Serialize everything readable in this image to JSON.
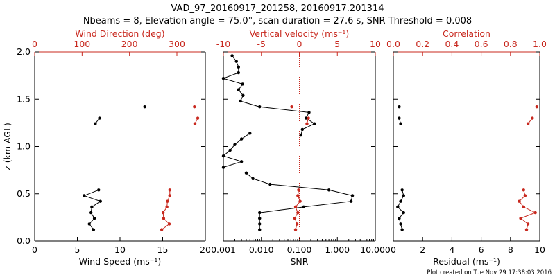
{
  "title": "VAD_97_20160917_201258, 20160917.201314",
  "subtitle": "Nbeams = 8, Elevation angle = 75.0°, scan duration = 27.6 s, SNR Threshold = 0.008",
  "footer": "Plot created on Tue Nov 29 17:38:03 2016",
  "colors": {
    "black": "#000000",
    "red": "#c8281e"
  },
  "chart_data": [
    {
      "type": "line",
      "ylabel": "z (km AGL)",
      "ylim": [
        0,
        2.0
      ],
      "y_ticks": [
        "0.0",
        "0.5",
        "1.0",
        "1.5",
        "2.0"
      ],
      "bottom_axis": {
        "label": "Wind Speed (ms⁻¹)",
        "lim": [
          0,
          20
        ],
        "ticks": [
          "0",
          "5",
          "10",
          "15",
          "20"
        ]
      },
      "top_axis": {
        "label": "Wind Direction (deg)",
        "lim": [
          0,
          360
        ],
        "ticks": [
          "0",
          "100",
          "200",
          "300"
        ]
      },
      "series": [
        {
          "axis": "bottom",
          "color": "#000000",
          "segments": [
            {
              "z": [
                0.12,
                0.18,
                0.24,
                0.3,
                0.36,
                0.42,
                0.48,
                0.54
              ],
              "x": [
                6.9,
                6.4,
                7.0,
                6.6,
                6.7,
                7.7,
                5.8,
                7.5
              ]
            },
            {
              "z": [
                1.24,
                1.3
              ],
              "x": [
                7.1,
                7.6
              ]
            },
            {
              "z": [
                1.42
              ],
              "x": [
                12.9
              ]
            }
          ]
        },
        {
          "axis": "top",
          "color": "#c8281e",
          "segments": [
            {
              "z": [
                0.12,
                0.18,
                0.24,
                0.3,
                0.36,
                0.42,
                0.48,
                0.54
              ],
              "x": [
                268,
                284,
                272,
                271,
                279,
                280,
                285,
                285
              ]
            },
            {
              "z": [
                1.24,
                1.3
              ],
              "x": [
                338,
                344
              ]
            },
            {
              "z": [
                1.42
              ],
              "x": [
                337
              ]
            }
          ]
        }
      ]
    },
    {
      "type": "line",
      "bottom_axis": {
        "label": "SNR",
        "lim": [
          0.001,
          10
        ],
        "scale": "log",
        "ticks": [
          "0.001",
          "0.010",
          "0.100",
          "1.000",
          "10.000"
        ]
      },
      "top_axis": {
        "label": "Vertical velocity (ms⁻¹)",
        "lim": [
          -10,
          10
        ],
        "ticks": [
          "-10",
          "-5",
          "0",
          "5",
          "10"
        ]
      },
      "reference_line": {
        "axis": "top",
        "value": 0,
        "style": "dotted",
        "color": "#c8281e"
      },
      "series": [
        {
          "axis": "bottom",
          "color": "#000000",
          "segments": [
            {
              "z": [
                0.12,
                0.18,
                0.24,
                0.3,
                0.36,
                0.42,
                0.48,
                0.54,
                0.6,
                0.66,
                0.72
              ],
              "x": [
                0.009,
                0.009,
                0.009,
                0.009,
                0.13,
                2.3,
                2.5,
                0.6,
                0.017,
                0.006,
                0.004
              ]
            },
            {
              "z": [
                0.78,
                0.84,
                0.9,
                0.96,
                1.02,
                1.08,
                1.14
              ],
              "x": [
                0.001,
                0.003,
                0.001,
                0.0015,
                0.002,
                0.003,
                0.005
              ]
            },
            {
              "z": [
                1.12,
                1.18,
                1.24,
                1.3,
                1.36,
                1.42,
                1.48,
                1.54,
                1.6,
                1.66,
                1.72,
                1.78,
                1.84,
                1.9,
                1.96
              ],
              "x": [
                0.11,
                0.12,
                0.25,
                0.15,
                0.18,
                0.009,
                0.0028,
                0.0033,
                0.0025,
                0.0032,
                0.001,
                0.0025,
                0.0025,
                0.0022,
                0.0017
              ]
            }
          ]
        },
        {
          "axis": "top",
          "color": "#c8281e",
          "segments": [
            {
              "z": [
                0.12,
                0.18,
                0.24,
                0.3,
                0.36,
                0.42,
                0.48,
                0.54
              ],
              "x": [
                -0.5,
                -0.3,
                -0.6,
                -0.2,
                -0.5,
                0.1,
                -0.2,
                -0.1
              ]
            },
            {
              "z": [
                1.24,
                1.3
              ],
              "x": [
                1.0,
                1.2
              ]
            },
            {
              "z": [
                1.42
              ],
              "x": [
                -1.0
              ]
            }
          ]
        }
      ]
    },
    {
      "type": "line",
      "bottom_axis": {
        "label": "Residual (ms⁻¹)",
        "lim": [
          0,
          10
        ],
        "ticks": [
          "0",
          "2",
          "4",
          "6",
          "8",
          "10"
        ]
      },
      "top_axis": {
        "label": "Correlation",
        "lim": [
          0,
          1.0
        ],
        "ticks": [
          "0.0",
          "0.2",
          "0.4",
          "0.6",
          "0.8",
          "1.0"
        ]
      },
      "series": [
        {
          "axis": "bottom",
          "color": "#000000",
          "segments": [
            {
              "z": [
                0.12,
                0.18,
                0.24,
                0.3,
                0.36,
                0.42,
                0.48,
                0.54
              ],
              "x": [
                0.6,
                0.5,
                0.4,
                0.7,
                0.3,
                0.5,
                0.7,
                0.6
              ]
            },
            {
              "z": [
                1.24,
                1.3
              ],
              "x": [
                0.5,
                0.4
              ]
            },
            {
              "z": [
                1.42
              ],
              "x": [
                0.4
              ]
            }
          ]
        },
        {
          "axis": "top",
          "color": "#c8281e",
          "segments": [
            {
              "z": [
                0.12,
                0.18,
                0.24,
                0.3,
                0.36,
                0.42,
                0.48,
                0.54
              ],
              "x": [
                0.91,
                0.92,
                0.87,
                0.97,
                0.89,
                0.86,
                0.9,
                0.89
              ]
            },
            {
              "z": [
                1.24,
                1.3
              ],
              "x": [
                0.92,
                0.95
              ]
            },
            {
              "z": [
                1.42
              ],
              "x": [
                0.98
              ]
            }
          ]
        }
      ]
    }
  ]
}
